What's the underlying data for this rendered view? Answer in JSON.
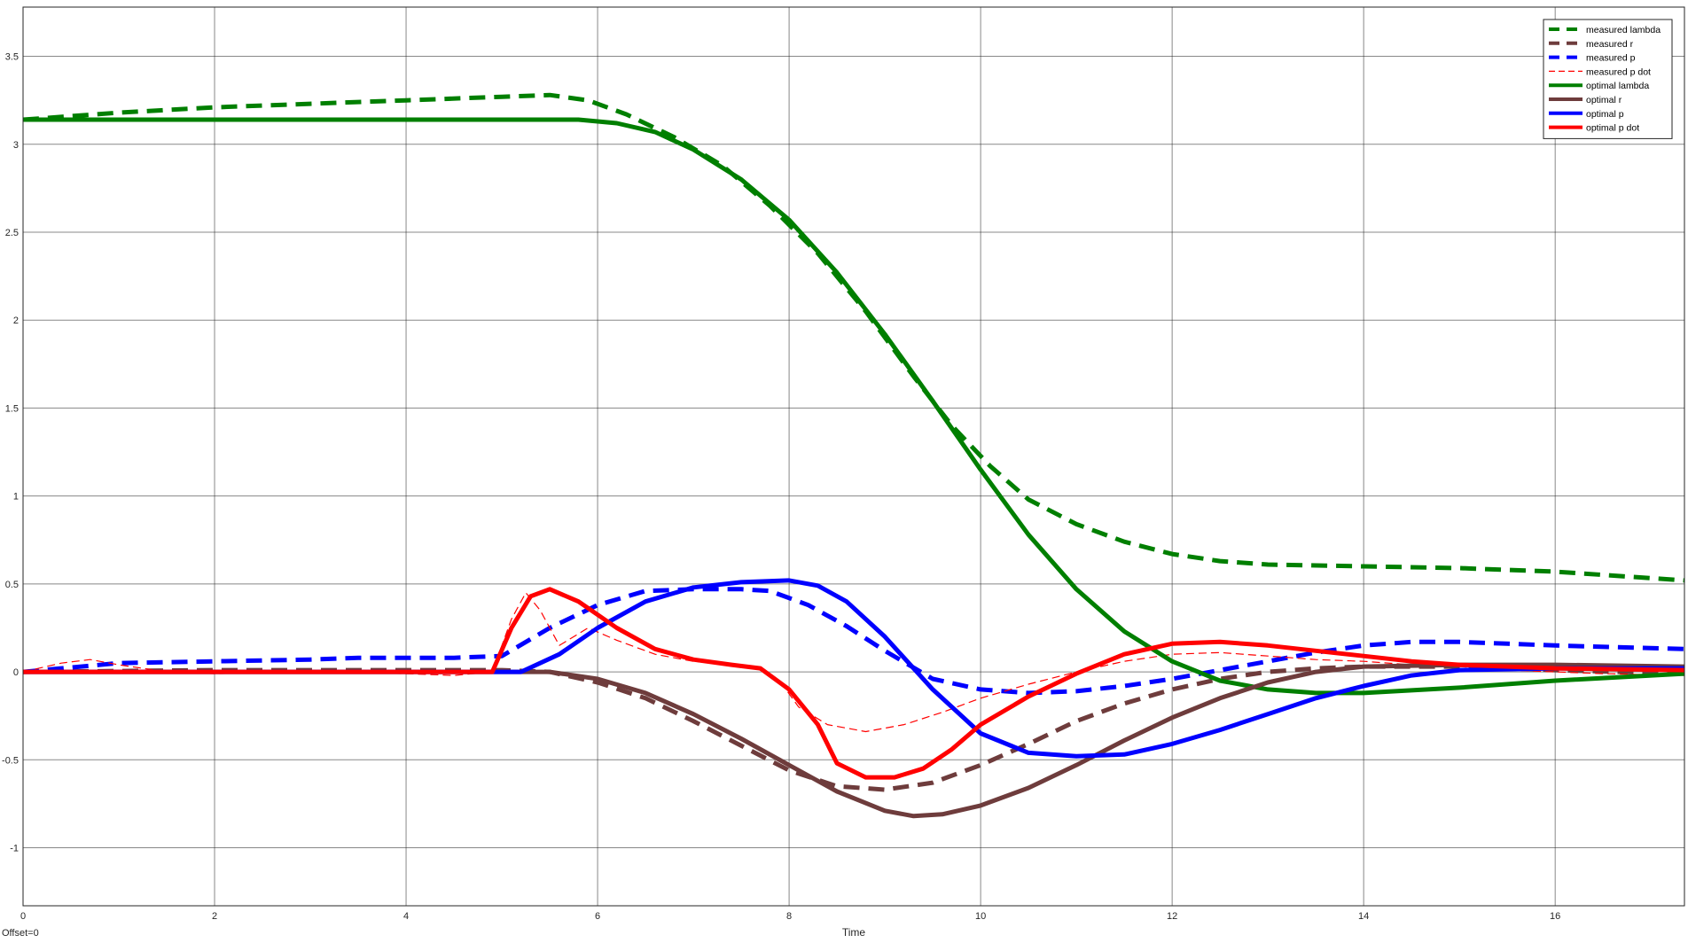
{
  "chart_data": {
    "type": "line",
    "title": "",
    "xlabel": "Time",
    "ylabel": "",
    "xlim": [
      0,
      17.35
    ],
    "ylim": [
      -1.33,
      3.78
    ],
    "grid": true,
    "legend_position": "top-right",
    "x_ticks": [
      "0",
      "2",
      "4",
      "6",
      "8",
      "10",
      "12",
      "14",
      "16"
    ],
    "y_ticks": [
      "-1",
      "-0.5",
      "0",
      "0.5",
      "1",
      "1.5",
      "2",
      "2.5",
      "3",
      "3.5"
    ],
    "offset_label": "Offset=0",
    "series": [
      {
        "name": "measured lambda",
        "color": "#007F00",
        "style": "dashed-thick",
        "points": [
          [
            0,
            3.14
          ],
          [
            1,
            3.18
          ],
          [
            2,
            3.21
          ],
          [
            3,
            3.23
          ],
          [
            4,
            3.25
          ],
          [
            5,
            3.27
          ],
          [
            5.5,
            3.28
          ],
          [
            5.9,
            3.25
          ],
          [
            6.3,
            3.17
          ],
          [
            6.8,
            3.04
          ],
          [
            7.3,
            2.88
          ],
          [
            7.8,
            2.65
          ],
          [
            8.3,
            2.38
          ],
          [
            8.8,
            2.05
          ],
          [
            9.3,
            1.68
          ],
          [
            9.7,
            1.4
          ],
          [
            10.1,
            1.17
          ],
          [
            10.5,
            0.98
          ],
          [
            11,
            0.84
          ],
          [
            11.5,
            0.74
          ],
          [
            12,
            0.67
          ],
          [
            12.5,
            0.63
          ],
          [
            13,
            0.61
          ],
          [
            14,
            0.6
          ],
          [
            15,
            0.59
          ],
          [
            16,
            0.57
          ],
          [
            17.35,
            0.52
          ]
        ]
      },
      {
        "name": "measured r",
        "color": "#6E3C3C",
        "style": "dashed-thick",
        "points": [
          [
            0,
            0
          ],
          [
            2,
            0.01
          ],
          [
            3.5,
            0.01
          ],
          [
            4.5,
            0.01
          ],
          [
            5,
            0.01
          ],
          [
            5.5,
            0
          ],
          [
            6,
            -0.06
          ],
          [
            6.5,
            -0.15
          ],
          [
            7,
            -0.28
          ],
          [
            7.5,
            -0.42
          ],
          [
            8,
            -0.56
          ],
          [
            8.5,
            -0.65
          ],
          [
            9,
            -0.67
          ],
          [
            9.5,
            -0.63
          ],
          [
            10,
            -0.53
          ],
          [
            10.5,
            -0.41
          ],
          [
            11,
            -0.28
          ],
          [
            11.5,
            -0.18
          ],
          [
            12,
            -0.1
          ],
          [
            12.5,
            -0.04
          ],
          [
            13,
            0
          ],
          [
            13.5,
            0.02
          ],
          [
            14,
            0.03
          ],
          [
            15,
            0.03
          ],
          [
            16,
            0.01
          ],
          [
            17.35,
            -0.01
          ]
        ]
      },
      {
        "name": "measured p",
        "color": "#0000FF",
        "style": "dashed-thick",
        "points": [
          [
            0,
            0
          ],
          [
            1,
            0.05
          ],
          [
            2,
            0.06
          ],
          [
            3,
            0.07
          ],
          [
            3.5,
            0.08
          ],
          [
            4,
            0.08
          ],
          [
            4.5,
            0.08
          ],
          [
            5,
            0.09
          ],
          [
            5.5,
            0.25
          ],
          [
            6,
            0.38
          ],
          [
            6.5,
            0.46
          ],
          [
            7,
            0.47
          ],
          [
            7.5,
            0.47
          ],
          [
            7.8,
            0.46
          ],
          [
            8.2,
            0.38
          ],
          [
            8.6,
            0.26
          ],
          [
            9,
            0.12
          ],
          [
            9.5,
            -0.04
          ],
          [
            10,
            -0.1
          ],
          [
            10.5,
            -0.12
          ],
          [
            11,
            -0.11
          ],
          [
            11.5,
            -0.08
          ],
          [
            12,
            -0.04
          ],
          [
            12.5,
            0.01
          ],
          [
            13,
            0.06
          ],
          [
            13.5,
            0.11
          ],
          [
            14,
            0.15
          ],
          [
            14.5,
            0.17
          ],
          [
            15,
            0.17
          ],
          [
            15.5,
            0.16
          ],
          [
            16,
            0.15
          ],
          [
            17.35,
            0.13
          ]
        ]
      },
      {
        "name": "measured p dot",
        "color": "#FF0000",
        "style": "dashed-thin",
        "points": [
          [
            0,
            0
          ],
          [
            0.4,
            0.05
          ],
          [
            0.7,
            0.07
          ],
          [
            1,
            0.04
          ],
          [
            1.5,
            0
          ],
          [
            2,
            -0.01
          ],
          [
            3,
            0
          ],
          [
            4,
            -0.01
          ],
          [
            4.5,
            -0.02
          ],
          [
            4.9,
            0
          ],
          [
            5.1,
            0.3
          ],
          [
            5.25,
            0.45
          ],
          [
            5.4,
            0.35
          ],
          [
            5.6,
            0.15
          ],
          [
            5.9,
            0.25
          ],
          [
            6.2,
            0.18
          ],
          [
            6.6,
            0.1
          ],
          [
            7,
            0.06
          ],
          [
            7.4,
            0.04
          ],
          [
            7.7,
            0.01
          ],
          [
            7.9,
            -0.05
          ],
          [
            8.1,
            -0.2
          ],
          [
            8.4,
            -0.3
          ],
          [
            8.8,
            -0.34
          ],
          [
            9.2,
            -0.3
          ],
          [
            9.6,
            -0.23
          ],
          [
            10,
            -0.15
          ],
          [
            10.5,
            -0.07
          ],
          [
            11,
            0
          ],
          [
            11.5,
            0.06
          ],
          [
            12,
            0.1
          ],
          [
            12.5,
            0.11
          ],
          [
            13,
            0.09
          ],
          [
            13.5,
            0.07
          ],
          [
            14,
            0.06
          ],
          [
            14.5,
            0.04
          ],
          [
            15,
            0.03
          ],
          [
            15.5,
            0.01
          ],
          [
            16,
            0
          ],
          [
            16.5,
            -0.01
          ],
          [
            17.35,
            -0.02
          ]
        ]
      },
      {
        "name": "optimal lambda",
        "color": "#007F00",
        "style": "solid-thick",
        "points": [
          [
            0,
            3.14
          ],
          [
            5,
            3.14
          ],
          [
            5.8,
            3.14
          ],
          [
            6.2,
            3.12
          ],
          [
            6.6,
            3.07
          ],
          [
            7,
            2.97
          ],
          [
            7.5,
            2.8
          ],
          [
            8,
            2.57
          ],
          [
            8.5,
            2.27
          ],
          [
            9,
            1.92
          ],
          [
            9.5,
            1.54
          ],
          [
            10,
            1.15
          ],
          [
            10.5,
            0.78
          ],
          [
            11,
            0.47
          ],
          [
            11.5,
            0.23
          ],
          [
            12,
            0.06
          ],
          [
            12.5,
            -0.05
          ],
          [
            13,
            -0.1
          ],
          [
            13.5,
            -0.12
          ],
          [
            14,
            -0.12
          ],
          [
            15,
            -0.09
          ],
          [
            16,
            -0.05
          ],
          [
            17.35,
            -0.01
          ]
        ]
      },
      {
        "name": "optimal r",
        "color": "#6E3C3C",
        "style": "solid-thick",
        "points": [
          [
            0,
            0
          ],
          [
            5,
            0
          ],
          [
            5.5,
            0
          ],
          [
            6,
            -0.04
          ],
          [
            6.5,
            -0.12
          ],
          [
            7,
            -0.24
          ],
          [
            7.5,
            -0.38
          ],
          [
            8,
            -0.53
          ],
          [
            8.5,
            -0.68
          ],
          [
            9,
            -0.79
          ],
          [
            9.3,
            -0.82
          ],
          [
            9.6,
            -0.81
          ],
          [
            10,
            -0.76
          ],
          [
            10.5,
            -0.66
          ],
          [
            11,
            -0.53
          ],
          [
            11.5,
            -0.39
          ],
          [
            12,
            -0.26
          ],
          [
            12.5,
            -0.15
          ],
          [
            13,
            -0.06
          ],
          [
            13.5,
            0
          ],
          [
            14,
            0.03
          ],
          [
            15,
            0.04
          ],
          [
            16,
            0.04
          ],
          [
            17.35,
            0.03
          ]
        ]
      },
      {
        "name": "optimal p",
        "color": "#0000FF",
        "style": "solid-thick",
        "points": [
          [
            0,
            0
          ],
          [
            5,
            0
          ],
          [
            5.2,
            0
          ],
          [
            5.6,
            0.1
          ],
          [
            6,
            0.25
          ],
          [
            6.5,
            0.4
          ],
          [
            7,
            0.48
          ],
          [
            7.5,
            0.51
          ],
          [
            8,
            0.52
          ],
          [
            8.3,
            0.49
          ],
          [
            8.6,
            0.4
          ],
          [
            9,
            0.2
          ],
          [
            9.5,
            -0.1
          ],
          [
            10,
            -0.35
          ],
          [
            10.5,
            -0.46
          ],
          [
            11,
            -0.48
          ],
          [
            11.5,
            -0.47
          ],
          [
            12,
            -0.41
          ],
          [
            12.5,
            -0.33
          ],
          [
            13,
            -0.24
          ],
          [
            13.5,
            -0.15
          ],
          [
            14,
            -0.08
          ],
          [
            14.5,
            -0.02
          ],
          [
            15,
            0.01
          ],
          [
            16,
            0.02
          ],
          [
            17.35,
            0.02
          ]
        ]
      },
      {
        "name": "optimal p dot",
        "color": "#FF0000",
        "style": "solid-thick",
        "points": [
          [
            0,
            0
          ],
          [
            4.9,
            0
          ],
          [
            5.1,
            0.25
          ],
          [
            5.3,
            0.43
          ],
          [
            5.5,
            0.47
          ],
          [
            5.8,
            0.4
          ],
          [
            6.2,
            0.25
          ],
          [
            6.6,
            0.13
          ],
          [
            7,
            0.07
          ],
          [
            7.4,
            0.04
          ],
          [
            7.7,
            0.02
          ],
          [
            8,
            -0.1
          ],
          [
            8.3,
            -0.3
          ],
          [
            8.5,
            -0.52
          ],
          [
            8.8,
            -0.6
          ],
          [
            9.1,
            -0.6
          ],
          [
            9.4,
            -0.55
          ],
          [
            9.7,
            -0.44
          ],
          [
            10,
            -0.3
          ],
          [
            10.5,
            -0.14
          ],
          [
            11,
            -0.01
          ],
          [
            11.5,
            0.1
          ],
          [
            12,
            0.16
          ],
          [
            12.5,
            0.17
          ],
          [
            13,
            0.15
          ],
          [
            13.5,
            0.12
          ],
          [
            14,
            0.09
          ],
          [
            14.5,
            0.06
          ],
          [
            15,
            0.04
          ],
          [
            16,
            0.02
          ],
          [
            17.35,
            0.01
          ]
        ]
      }
    ]
  }
}
